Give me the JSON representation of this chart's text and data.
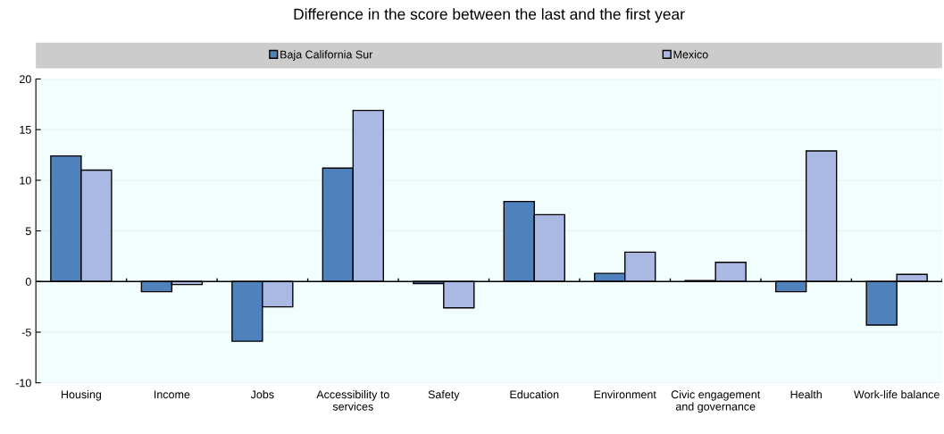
{
  "chart_data": {
    "type": "bar",
    "title": "Difference in the score between the last and the first year",
    "categories": [
      "Housing",
      "Income",
      "Jobs",
      "Accessibility to\nservices",
      "Safety",
      "Education",
      "Environment",
      "Civic engagement\nand governance",
      "Health",
      "Work-life balance"
    ],
    "series": [
      {
        "name": "Baja California Sur",
        "color": "#4f81bd",
        "values": [
          12.4,
          -1.0,
          -5.9,
          11.2,
          -0.2,
          7.9,
          0.8,
          0.1,
          -1.0,
          -4.3
        ]
      },
      {
        "name": "Mexico",
        "color": "#a9b9e3",
        "values": [
          11.0,
          -0.3,
          -2.5,
          16.9,
          -2.6,
          6.6,
          2.9,
          1.9,
          12.9,
          0.7
        ]
      }
    ],
    "ylim": [
      -10,
      20
    ],
    "yticks": [
      -10,
      -5,
      0,
      5,
      10,
      15,
      20
    ],
    "grid": "y",
    "legend": "top"
  }
}
